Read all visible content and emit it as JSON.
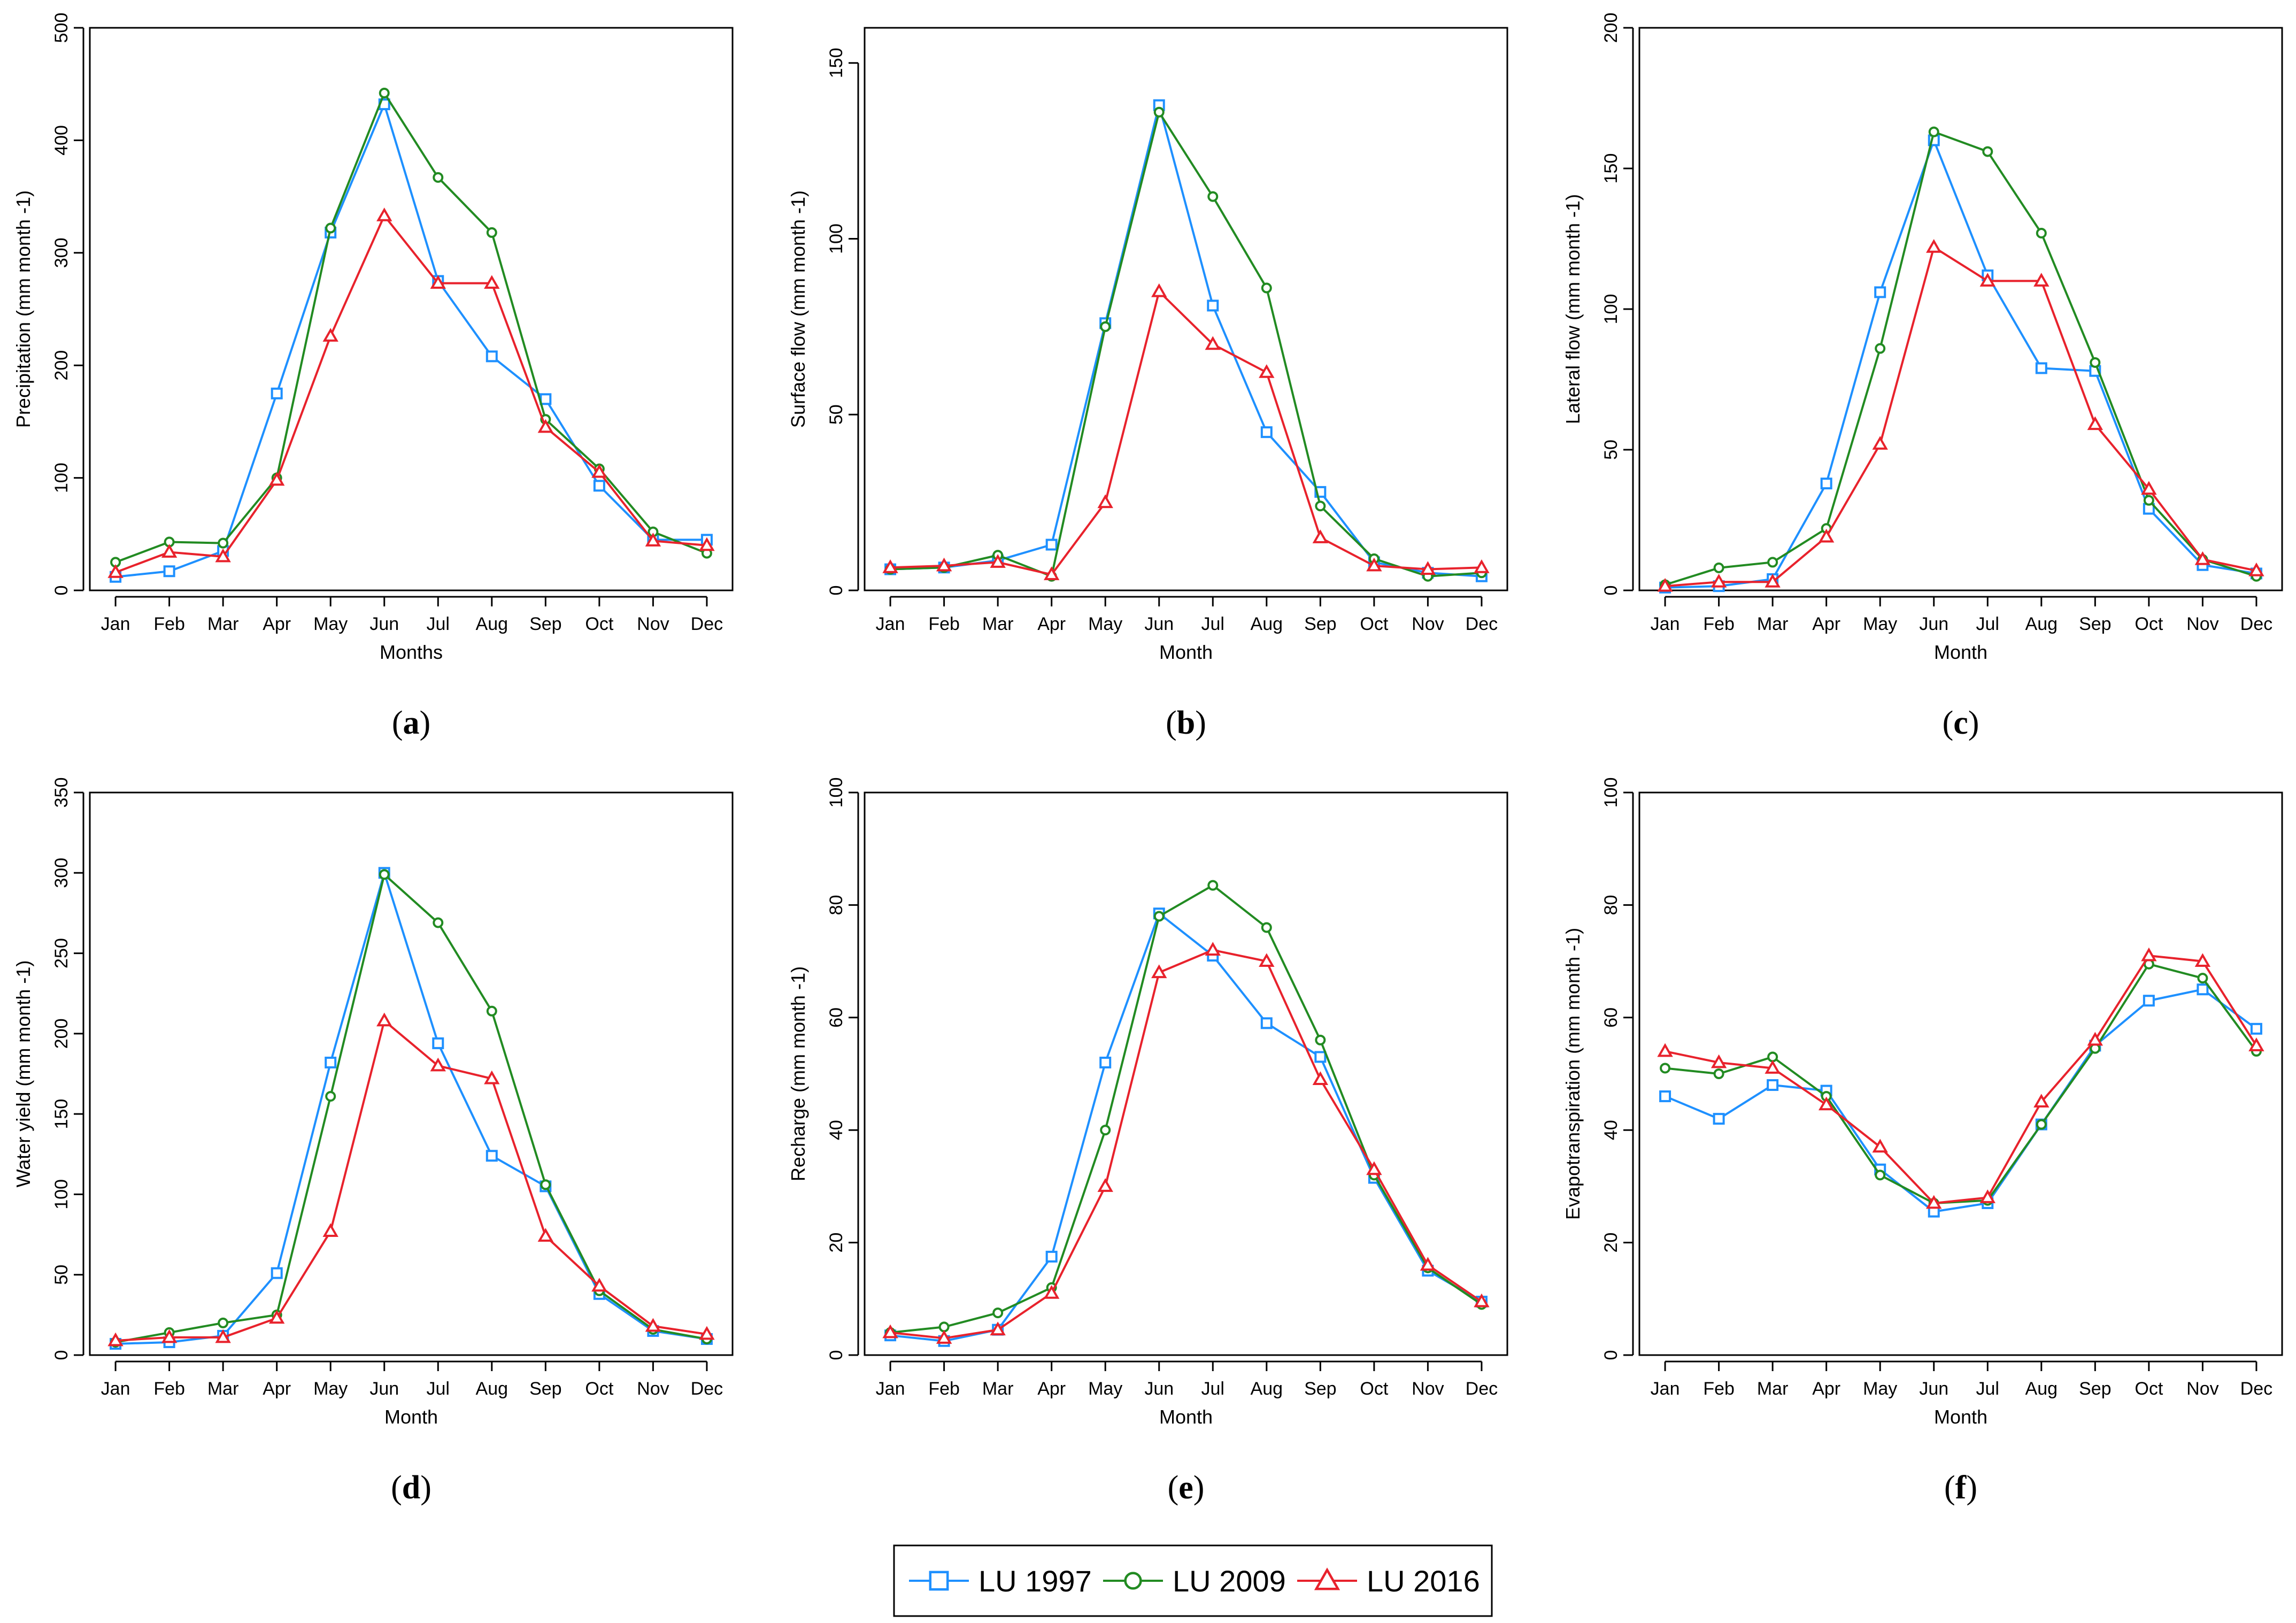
{
  "series_styles": [
    {
      "name": "LU 1997",
      "color": "#1e90ff",
      "marker": "square"
    },
    {
      "name": "LU 2009",
      "color": "#228b22",
      "marker": "circle"
    },
    {
      "name": "LU 2016",
      "color": "#e8222c",
      "marker": "triangle"
    }
  ],
  "legend": {
    "items": [
      "LU 1997",
      "LU 2009",
      "LU 2016"
    ]
  },
  "chart_data": [
    {
      "type": "line",
      "panel_label": "a",
      "xlabel": "Months",
      "ylabel": "Precipitation (mm month -1)",
      "categories": [
        "Jan",
        "Feb",
        "Mar",
        "Apr",
        "May",
        "Jun",
        "Jul",
        "Aug",
        "Sep",
        "Oct",
        "Nov",
        "Dec"
      ],
      "ylim": [
        0,
        500
      ],
      "yticks": [
        0,
        100,
        200,
        300,
        400,
        500
      ],
      "series": [
        {
          "name": "LU 1997",
          "values": [
            12,
            17,
            35,
            175,
            318,
            432,
            275,
            208,
            170,
            93,
            45,
            45
          ]
        },
        {
          "name": "LU 2009",
          "values": [
            25,
            43,
            42,
            100,
            322,
            442,
            367,
            318,
            152,
            108,
            52,
            33
          ]
        },
        {
          "name": "LU 2016",
          "values": [
            16,
            34,
            30,
            98,
            226,
            333,
            273,
            273,
            145,
            105,
            44,
            40
          ]
        }
      ]
    },
    {
      "type": "line",
      "panel_label": "b",
      "xlabel": "Month",
      "ylabel": "Surface flow (mm month -1)",
      "categories": [
        "Jan",
        "Feb",
        "Mar",
        "Apr",
        "May",
        "Jun",
        "Jul",
        "Aug",
        "Sep",
        "Oct",
        "Nov",
        "Dec"
      ],
      "ylim": [
        0,
        160
      ],
      "yticks": [
        0,
        50,
        100,
        150
      ],
      "series": [
        {
          "name": "LU 1997",
          "values": [
            6,
            6.5,
            8.5,
            13,
            76,
            138,
            81,
            45,
            28,
            8,
            5,
            4
          ]
        },
        {
          "name": "LU 2009",
          "values": [
            6,
            6.5,
            10,
            4,
            75,
            136,
            112,
            86,
            24,
            9,
            4,
            5
          ]
        },
        {
          "name": "LU 2016",
          "values": [
            6.5,
            7,
            8,
            4.5,
            25,
            85,
            70,
            62,
            15,
            7,
            6,
            6.5
          ]
        }
      ]
    },
    {
      "type": "line",
      "panel_label": "c",
      "xlabel": "Month",
      "ylabel": "Lateral flow (mm month -1)",
      "categories": [
        "Jan",
        "Feb",
        "Mar",
        "Apr",
        "May",
        "Jun",
        "Jul",
        "Aug",
        "Sep",
        "Oct",
        "Nov",
        "Dec"
      ],
      "ylim": [
        0,
        200
      ],
      "yticks": [
        0,
        50,
        100,
        150,
        200
      ],
      "series": [
        {
          "name": "LU 1997",
          "values": [
            1,
            1.5,
            4,
            38,
            106,
            160,
            112,
            79,
            78,
            29,
            9,
            6
          ]
        },
        {
          "name": "LU 2009",
          "values": [
            2,
            8,
            10,
            22,
            86,
            163,
            156,
            127,
            81,
            32,
            11,
            5
          ]
        },
        {
          "name": "LU 2016",
          "values": [
            1.5,
            3,
            3,
            19,
            52,
            122,
            110,
            110,
            59,
            36,
            11,
            7
          ]
        }
      ]
    },
    {
      "type": "line",
      "panel_label": "d",
      "xlabel": "Month",
      "ylabel": "Water yield (mm month -1)",
      "categories": [
        "Jan",
        "Feb",
        "Mar",
        "Apr",
        "May",
        "Jun",
        "Jul",
        "Aug",
        "Sep",
        "Oct",
        "Nov",
        "Dec"
      ],
      "ylim": [
        0,
        350
      ],
      "yticks": [
        0,
        50,
        100,
        150,
        200,
        250,
        300,
        350
      ],
      "series": [
        {
          "name": "LU 1997",
          "values": [
            7,
            8,
            12,
            51,
            182,
            300,
            194,
            124,
            105,
            38,
            15,
            10
          ]
        },
        {
          "name": "LU 2009",
          "values": [
            8,
            14,
            20,
            25,
            161,
            299,
            269,
            214,
            106,
            40,
            16,
            10
          ]
        },
        {
          "name": "LU 2016",
          "values": [
            9,
            11,
            11,
            23,
            77,
            208,
            180,
            172,
            74,
            43,
            18,
            13
          ]
        }
      ]
    },
    {
      "type": "line",
      "panel_label": "e",
      "xlabel": "Month",
      "ylabel": "Recharge (mm month -1)",
      "categories": [
        "Jan",
        "Feb",
        "Mar",
        "Apr",
        "May",
        "Jun",
        "Jul",
        "Aug",
        "Sep",
        "Oct",
        "Nov",
        "Dec"
      ],
      "ylim": [
        0,
        100
      ],
      "yticks": [
        0,
        20,
        40,
        60,
        80,
        100
      ],
      "series": [
        {
          "name": "LU 1997",
          "values": [
            3.5,
            2.5,
            4.5,
            17.5,
            52,
            78.5,
            71,
            59,
            53,
            31.5,
            15,
            9.5
          ]
        },
        {
          "name": "LU 2009",
          "values": [
            4,
            5,
            7.5,
            12,
            40,
            78,
            83.5,
            76,
            56,
            32,
            15.5,
            9
          ]
        },
        {
          "name": "LU 2016",
          "values": [
            4,
            3,
            4.5,
            11,
            30,
            68,
            72,
            70,
            49,
            33,
            16,
            9.5
          ]
        }
      ]
    },
    {
      "type": "line",
      "panel_label": "f",
      "xlabel": "Month",
      "ylabel": "Evapotranspiration (mm month -1)",
      "categories": [
        "Jan",
        "Feb",
        "Mar",
        "Apr",
        "May",
        "Jun",
        "Jul",
        "Aug",
        "Sep",
        "Oct",
        "Nov",
        "Dec"
      ],
      "ylim": [
        0,
        100
      ],
      "yticks": [
        0,
        20,
        40,
        60,
        80,
        100
      ],
      "series": [
        {
          "name": "LU 1997",
          "values": [
            46,
            42,
            48,
            47,
            33,
            25.5,
            27,
            41,
            55,
            63,
            65,
            58
          ]
        },
        {
          "name": "LU 2009",
          "values": [
            51,
            50,
            53,
            46,
            32,
            27,
            27.5,
            41,
            54.5,
            69.5,
            67,
            54
          ]
        },
        {
          "name": "LU 2016",
          "values": [
            54,
            52,
            51,
            44.5,
            37,
            27,
            28,
            45,
            56,
            71,
            70,
            55
          ]
        }
      ]
    }
  ]
}
